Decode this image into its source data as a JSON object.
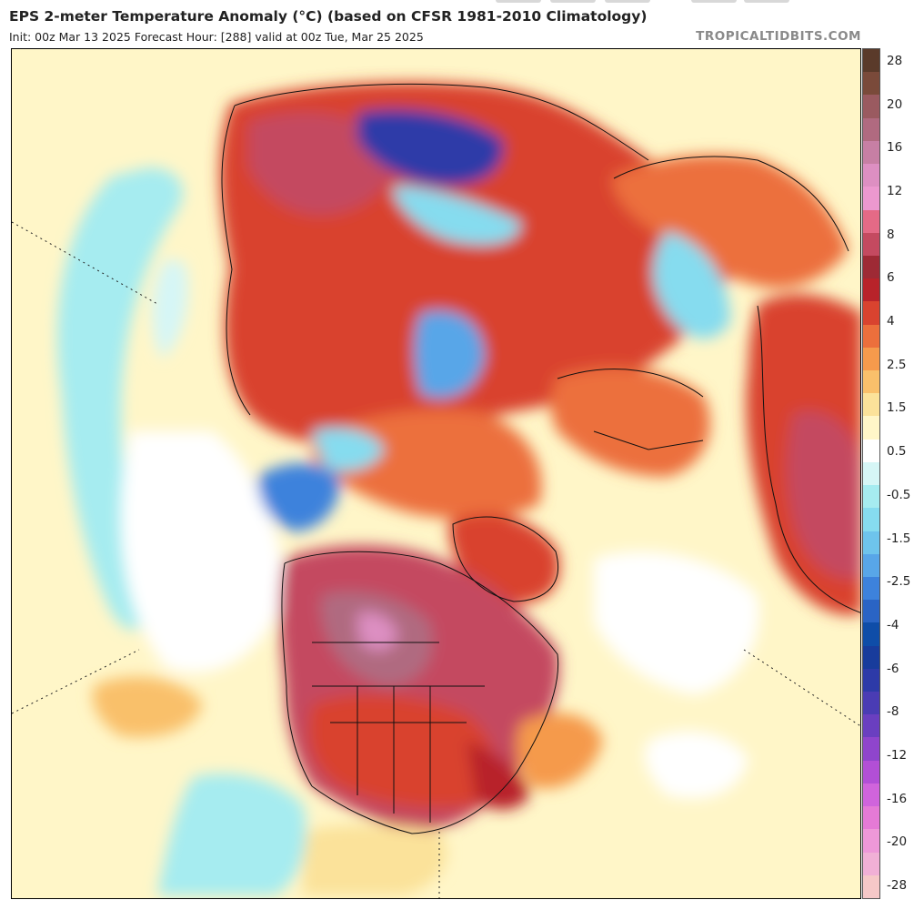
{
  "header": {
    "title": "EPS 2-meter Temperature Anomaly (°C) (based on CFSR 1981-2010 Climatology)",
    "subtitle": "Init: 00z Mar 13 2025   Forecast Hour: [288]   valid at 00z Tue, Mar 25 2025",
    "source": "TROPICALTIDBITS.COM"
  },
  "colorbar": {
    "labels": [
      "28",
      "20",
      "16",
      "12",
      "8",
      "6",
      "4",
      "2.5",
      "1.5",
      "0.5",
      "-0.5",
      "-1.5",
      "-2.5",
      "-4",
      "-6",
      "-8",
      "-12",
      "-16",
      "-20",
      "-28"
    ],
    "colors": [
      "#5a3a2a",
      "#7a4a3a",
      "#9a5a60",
      "#b06a80",
      "#c77fa4",
      "#dd8fc2",
      "#ec98cf",
      "#e46a86",
      "#c44a60",
      "#9e2a35",
      "#b8232a",
      "#d9432f",
      "#ec6f3c",
      "#f59a4c",
      "#f9c06b",
      "#fbe29a",
      "#fff6c8",
      "#ffffff",
      "#d6f6f6",
      "#a6ecf0",
      "#86dcef",
      "#6ec4ec",
      "#58a6e8",
      "#3d82dc",
      "#2a64c4",
      "#0f4da8",
      "#183c9c",
      "#2d3aa8",
      "#4a3cb4",
      "#6a3fc0",
      "#8f45cc",
      "#b24fd6",
      "#d064dc",
      "#e57ad6",
      "#ee98d8",
      "#f1b0d6",
      "#f6c8c8"
    ],
    "accent_warm": "#c0392b",
    "accent_cold": "#3d6fd6"
  }
}
